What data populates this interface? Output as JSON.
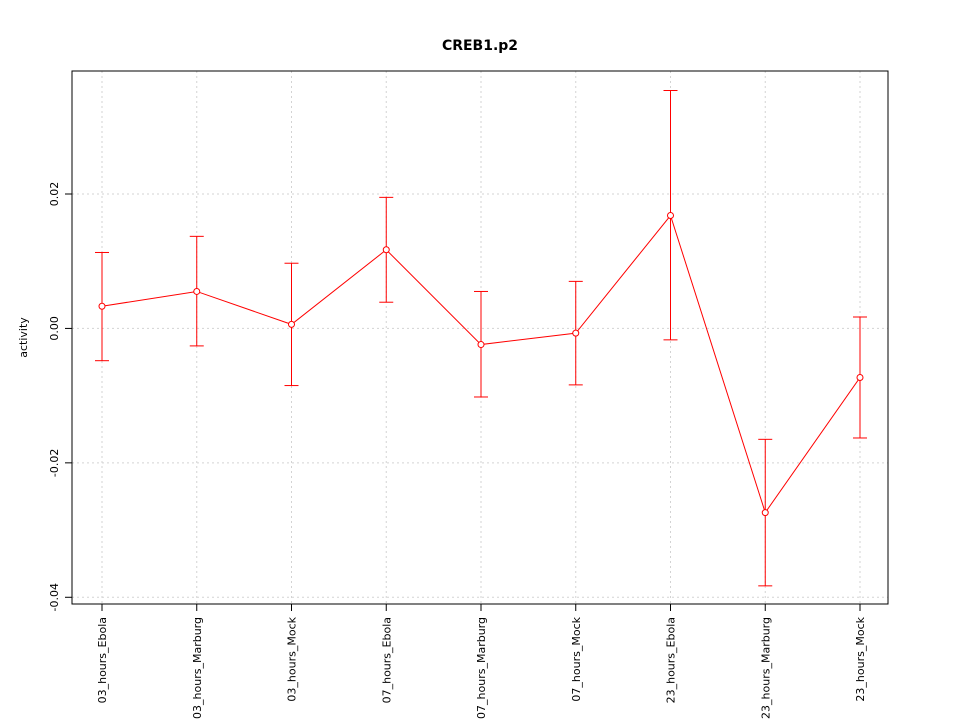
{
  "chart_data": {
    "type": "line",
    "title": "CREB1.p2",
    "xlabel": "",
    "ylabel": "activity",
    "categories": [
      "03_hours_Ebola",
      "03_hours_Marburg",
      "03_hours_Mock",
      "07_hours_Ebola",
      "07_hours_Marburg",
      "07_hours_Mock",
      "23_hours_Ebola",
      "23_hours_Marburg",
      "23_hours_Mock"
    ],
    "series": [
      {
        "values": [
          0.0033,
          0.0055,
          0.0006,
          0.0117,
          -0.0024,
          -0.0007,
          0.0168,
          -0.0274,
          -0.0073
        ],
        "upper": [
          0.0113,
          0.0137,
          0.0097,
          0.0195,
          0.0055,
          0.007,
          0.0354,
          -0.0165,
          0.0017
        ],
        "lower": [
          -0.0048,
          -0.0026,
          -0.0085,
          0.0039,
          -0.0102,
          -0.0084,
          -0.0017,
          -0.0383,
          -0.0163
        ],
        "color": "#ff0000"
      }
    ],
    "yticks": [
      -0.04,
      -0.02,
      0.0,
      0.02
    ],
    "ytick_labels": [
      "-0.04",
      "-0.02",
      "0.00",
      "0.02"
    ],
    "ylim": [
      -0.041,
      0.0383
    ],
    "grid": true,
    "grid_color": "#d3d3d3"
  }
}
